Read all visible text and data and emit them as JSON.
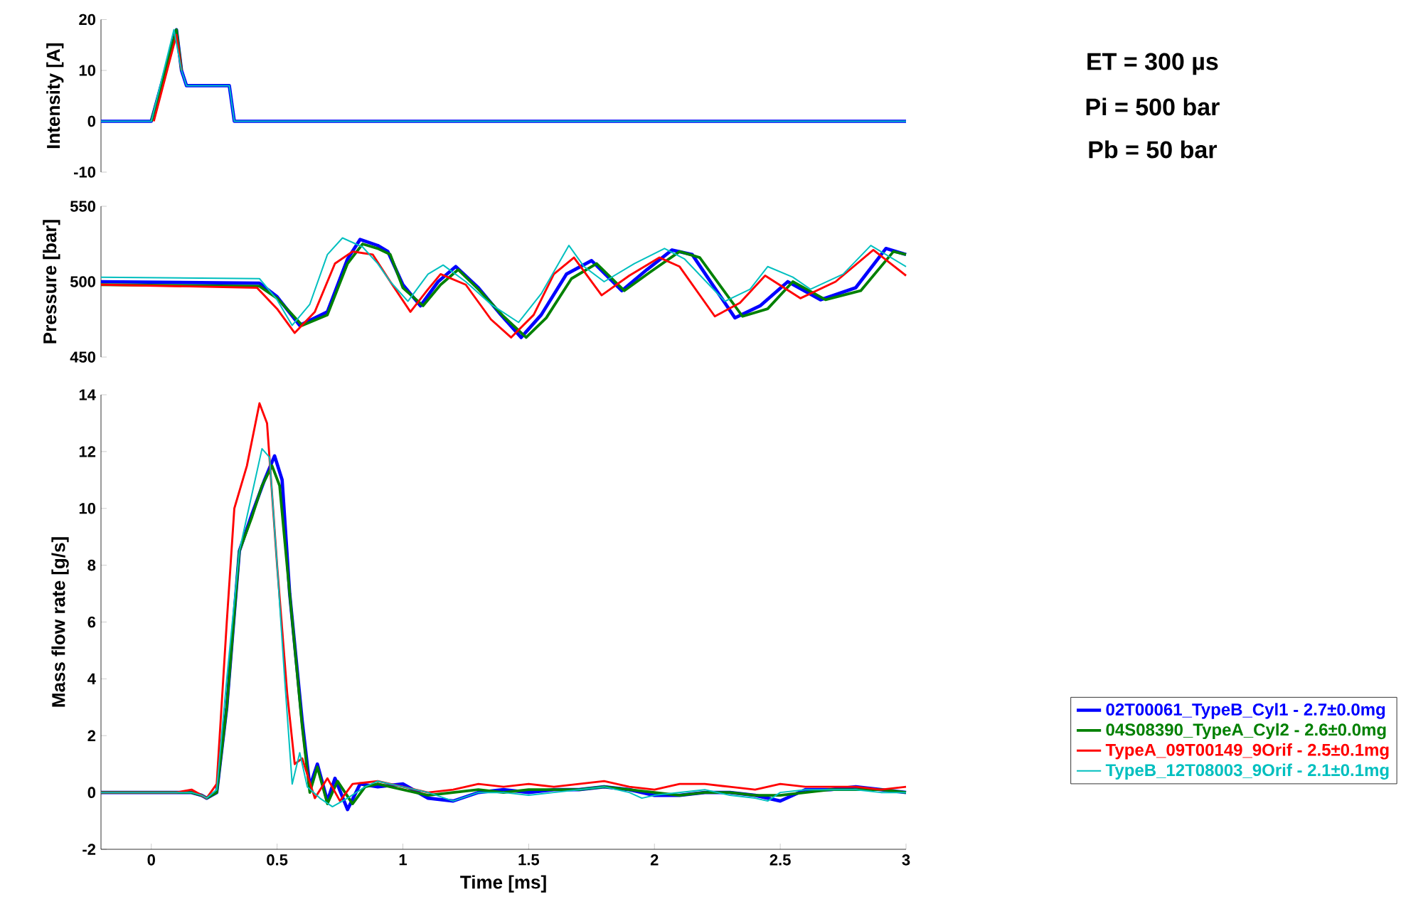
{
  "chart_data": [
    {
      "type": "line",
      "ylabel": "Intensity [A]",
      "xlim": [
        -0.2,
        3
      ],
      "ylim": [
        -10,
        20
      ],
      "yticks": [
        -10,
        0,
        10,
        20
      ],
      "tick_labels": "y",
      "annotations": [
        "ET = 300 µs",
        "Pi = 500 bar",
        "Pb = 50 bar"
      ],
      "series": [
        {
          "color": "#0000ff",
          "x": [
            -0.2,
            0.0,
            0.1,
            0.12,
            0.14,
            0.31,
            0.33,
            0.34,
            3.0
          ],
          "values": [
            0,
            0,
            18,
            10,
            7,
            7,
            0,
            0,
            0
          ]
        },
        {
          "color": "#008000",
          "x": [
            0.0,
            0.1,
            0.12
          ],
          "values": [
            0,
            18,
            10
          ]
        },
        {
          "color": "#ff0000",
          "x": [
            0.01,
            0.1,
            0.12
          ],
          "values": [
            0,
            17,
            10
          ]
        },
        {
          "color": "#00bfbf",
          "x": [
            -0.2,
            0.0,
            0.09,
            0.12,
            0.14,
            0.31,
            0.33,
            0.34,
            3.0
          ],
          "values": [
            0,
            0,
            18,
            10,
            7,
            7,
            0,
            0,
            0
          ]
        }
      ]
    },
    {
      "type": "line",
      "ylabel": "Pressure [bar]",
      "xlim": [
        -0.2,
        3
      ],
      "ylim": [
        450,
        550
      ],
      "yticks": [
        450,
        500,
        550
      ],
      "tick_labels": "y",
      "series": [
        {
          "color": "#0000ff",
          "x": [
            -0.2,
            0.43,
            0.5,
            0.59,
            0.7,
            0.78,
            0.83,
            0.9,
            0.94,
            1.0,
            1.07,
            1.14,
            1.21,
            1.3,
            1.39,
            1.47,
            1.55,
            1.65,
            1.75,
            1.87,
            1.97,
            2.07,
            2.15,
            2.32,
            2.42,
            2.53,
            2.66,
            2.8,
            2.92,
            3.0
          ],
          "values": [
            500,
            499,
            490,
            471,
            480,
            515,
            528,
            524,
            520,
            498,
            484,
            500,
            510,
            496,
            478,
            463,
            478,
            505,
            514,
            494,
            508,
            521,
            518,
            476,
            484,
            500,
            488,
            496,
            522,
            518
          ]
        },
        {
          "color": "#008000",
          "x": [
            -0.2,
            0.43,
            0.5,
            0.6,
            0.7,
            0.78,
            0.84,
            0.9,
            0.95,
            1.0,
            1.08,
            1.15,
            1.22,
            1.3,
            1.4,
            1.49,
            1.57,
            1.67,
            1.77,
            1.88,
            1.98,
            2.1,
            2.18,
            2.35,
            2.45,
            2.55,
            2.68,
            2.82,
            2.95,
            3.0
          ],
          "values": [
            498,
            497,
            489,
            471,
            478,
            512,
            525,
            522,
            518,
            496,
            484,
            498,
            508,
            495,
            477,
            463,
            476,
            502,
            512,
            494,
            506,
            520,
            516,
            477,
            482,
            500,
            488,
            494,
            520,
            518
          ]
        },
        {
          "color": "#ff0000",
          "x": [
            -0.2,
            0.42,
            0.5,
            0.57,
            0.65,
            0.73,
            0.8,
            0.88,
            0.95,
            1.03,
            1.1,
            1.15,
            1.25,
            1.35,
            1.43,
            1.52,
            1.6,
            1.68,
            1.79,
            1.9,
            2.02,
            2.1,
            2.24,
            2.34,
            2.44,
            2.58,
            2.72,
            2.87,
            3.0
          ],
          "values": [
            498,
            496,
            482,
            466,
            480,
            512,
            520,
            518,
            500,
            480,
            495,
            505,
            498,
            475,
            463,
            478,
            505,
            516,
            491,
            504,
            516,
            510,
            477,
            486,
            504,
            489,
            500,
            521,
            504
          ]
        },
        {
          "color": "#00bfbf",
          "x": [
            -0.2,
            0.43,
            0.5,
            0.56,
            0.63,
            0.7,
            0.76,
            0.84,
            0.9,
            0.95,
            1.02,
            1.1,
            1.16,
            1.25,
            1.35,
            1.46,
            1.55,
            1.66,
            1.72,
            1.8,
            1.92,
            2.04,
            2.12,
            2.28,
            2.38,
            2.45,
            2.55,
            2.62,
            2.75,
            2.86,
            3.0
          ],
          "values": [
            503,
            502,
            488,
            471,
            485,
            518,
            529,
            523,
            512,
            500,
            487,
            505,
            511,
            500,
            485,
            473,
            492,
            524,
            510,
            500,
            512,
            522,
            515,
            487,
            495,
            510,
            503,
            495,
            505,
            524,
            510
          ]
        }
      ]
    },
    {
      "type": "line",
      "xlabel": "Time [ms]",
      "ylabel": "Mass flow rate [g/s]",
      "xlim": [
        -0.2,
        3
      ],
      "ylim": [
        -2,
        14
      ],
      "xticks": [
        0,
        0.5,
        1,
        1.5,
        2,
        2.5,
        3
      ],
      "yticks": [
        -2,
        0,
        2,
        4,
        6,
        8,
        10,
        12,
        14
      ],
      "legend": "right",
      "series": [
        {
          "name": "02T00061_TypeB_Cyl1 - 2.7±0.0mg",
          "color": "#0000ff",
          "x": [
            -0.2,
            0.1,
            0.16,
            0.2,
            0.22,
            0.26,
            0.3,
            0.35,
            0.4,
            0.45,
            0.49,
            0.52,
            0.55,
            0.6,
            0.63,
            0.66,
            0.7,
            0.73,
            0.78,
            0.83,
            0.9,
            1.0,
            1.1,
            1.2,
            1.3,
            1.4,
            1.5,
            1.6,
            1.7,
            1.8,
            1.9,
            2.0,
            2.1,
            2.2,
            2.3,
            2.4,
            2.5,
            2.6,
            2.7,
            2.8,
            2.9,
            3.0
          ],
          "values": [
            0,
            0,
            0,
            -0.1,
            -0.2,
            0,
            3,
            8.5,
            9.8,
            11,
            11.85,
            11,
            7,
            2.5,
            0.2,
            1,
            -0.3,
            0.5,
            -0.6,
            0.3,
            0.2,
            0.3,
            -0.2,
            -0.3,
            0,
            0.1,
            0,
            0.1,
            0.1,
            0.2,
            0.1,
            -0.1,
            -0.1,
            0,
            0,
            -0.1,
            -0.3,
            0.1,
            0.1,
            0.2,
            0.1,
            0
          ]
        },
        {
          "name": "04S08390_TypeA_Cyl2 - 2.6±0.0mg",
          "color": "#008000",
          "x": [
            -0.2,
            0.1,
            0.16,
            0.2,
            0.22,
            0.26,
            0.3,
            0.35,
            0.4,
            0.44,
            0.48,
            0.51,
            0.55,
            0.6,
            0.63,
            0.66,
            0.7,
            0.74,
            0.8,
            0.85,
            0.9,
            1.0,
            1.1,
            1.2,
            1.3,
            1.4,
            1.5,
            1.6,
            1.7,
            1.8,
            1.9,
            2.0,
            2.1,
            2.2,
            2.3,
            2.4,
            2.5,
            2.6,
            2.7,
            2.8,
            2.9,
            3.0
          ],
          "values": [
            0,
            0,
            0,
            -0.1,
            -0.2,
            0,
            3,
            8.5,
            9.7,
            10.8,
            11.5,
            10.8,
            7,
            2.3,
            0,
            0.9,
            -0.4,
            0.4,
            -0.4,
            0.2,
            0.3,
            0.1,
            -0.1,
            0,
            0.1,
            0,
            0.1,
            0.1,
            0.1,
            0.2,
            0.1,
            0,
            -0.1,
            0,
            0,
            -0.1,
            -0.1,
            0,
            0.1,
            0.1,
            0.1,
            0
          ]
        },
        {
          "name": "TypeA_09T00149_9Orif - 2.5±0.1mg",
          "color": "#ff0000",
          "x": [
            -0.2,
            0.1,
            0.16,
            0.2,
            0.22,
            0.26,
            0.3,
            0.33,
            0.38,
            0.43,
            0.46,
            0.5,
            0.54,
            0.57,
            0.6,
            0.65,
            0.7,
            0.75,
            0.8,
            0.9,
            1.0,
            1.1,
            1.2,
            1.3,
            1.4,
            1.5,
            1.6,
            1.7,
            1.8,
            1.9,
            2.0,
            2.1,
            2.2,
            2.3,
            2.4,
            2.5,
            2.6,
            2.7,
            2.8,
            2.9,
            3.0
          ],
          "values": [
            0,
            0,
            0.1,
            -0.1,
            -0.2,
            0.3,
            6,
            10,
            11.5,
            13.7,
            13,
            8,
            3.5,
            1,
            1.2,
            -0.2,
            0.5,
            -0.3,
            0.3,
            0.4,
            0.2,
            0,
            0.1,
            0.3,
            0.2,
            0.3,
            0.2,
            0.3,
            0.4,
            0.2,
            0.1,
            0.3,
            0.3,
            0.2,
            0.1,
            0.3,
            0.2,
            0.2,
            0.2,
            0.1,
            0.2
          ]
        },
        {
          "name": "TypeB_12T08003_9Orif - 2.1±0.1mg",
          "color": "#00bfbf",
          "x": [
            -0.2,
            0.1,
            0.16,
            0.2,
            0.22,
            0.26,
            0.3,
            0.35,
            0.4,
            0.44,
            0.47,
            0.5,
            0.53,
            0.56,
            0.59,
            0.62,
            0.67,
            0.72,
            0.78,
            0.85,
            0.9,
            1.0,
            1.1,
            1.2,
            1.3,
            1.4,
            1.5,
            1.6,
            1.7,
            1.8,
            1.9,
            1.95,
            2.0,
            2.1,
            2.2,
            2.3,
            2.4,
            2.45,
            2.5,
            2.6,
            2.7,
            2.8,
            2.9,
            3.0
          ],
          "values": [
            0,
            0,
            0,
            -0.1,
            -0.2,
            0.1,
            4,
            8.5,
            10.5,
            12.1,
            11.8,
            8,
            4,
            0.3,
            1.4,
            0.2,
            -0.2,
            -0.5,
            -0.2,
            0.2,
            0.4,
            0.2,
            0,
            -0.3,
            0,
            0,
            -0.1,
            0,
            0.1,
            0.2,
            0,
            -0.2,
            -0.1,
            0,
            0.1,
            -0.1,
            -0.2,
            -0.3,
            0,
            0.1,
            0.1,
            0.1,
            0,
            0
          ]
        }
      ]
    }
  ]
}
